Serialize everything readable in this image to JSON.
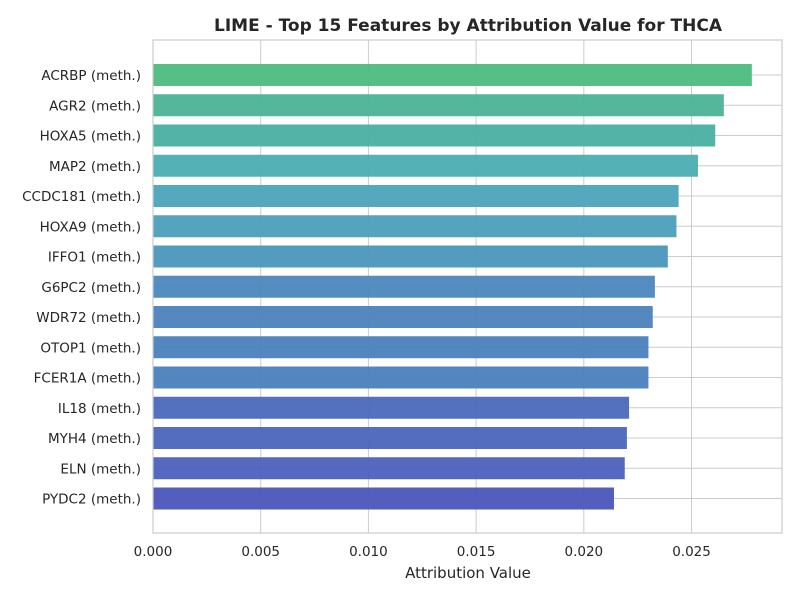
{
  "chart_data": {
    "type": "bar",
    "orientation": "horizontal",
    "title": "LIME - Top 15 Features by Attribution Value for THCA",
    "xlabel": "Attribution Value",
    "ylabel": "",
    "categories": [
      "ACRBP (meth.)",
      "AGR2 (meth.)",
      "HOXA5 (meth.)",
      "MAP2 (meth.)",
      "CCDC181 (meth.)",
      "HOXA9 (meth.)",
      "IFFO1 (meth.)",
      "G6PC2 (meth.)",
      "WDR72 (meth.)",
      "OTOP1 (meth.)",
      "FCER1A (meth.)",
      "IL18 (meth.)",
      "MYH4 (meth.)",
      "ELN (meth.)",
      "PYDC2 (meth.)"
    ],
    "values": [
      0.0278,
      0.0265,
      0.0261,
      0.0253,
      0.0244,
      0.0243,
      0.0239,
      0.0233,
      0.0232,
      0.023,
      0.023,
      0.0221,
      0.022,
      0.0219,
      0.0214
    ],
    "bar_colors": [
      "#4cbc80",
      "#4bb296",
      "#4bafa2",
      "#4baeb2",
      "#4ba4bc",
      "#4b9fbc",
      "#4b97bc",
      "#4b87bc",
      "#4b82bc",
      "#4b7fbc",
      "#4b7fbc",
      "#4b69bc",
      "#4b65bc",
      "#4b61bc",
      "#4b55bc"
    ],
    "xlim": [
      0,
      0.0292
    ],
    "xticks": [
      "0.000",
      "0.005",
      "0.010",
      "0.015",
      "0.020",
      "0.025"
    ],
    "xtick_values": [
      0,
      0.005,
      0.01,
      0.015,
      0.02,
      0.025
    ],
    "grid": true,
    "legend": "none"
  }
}
